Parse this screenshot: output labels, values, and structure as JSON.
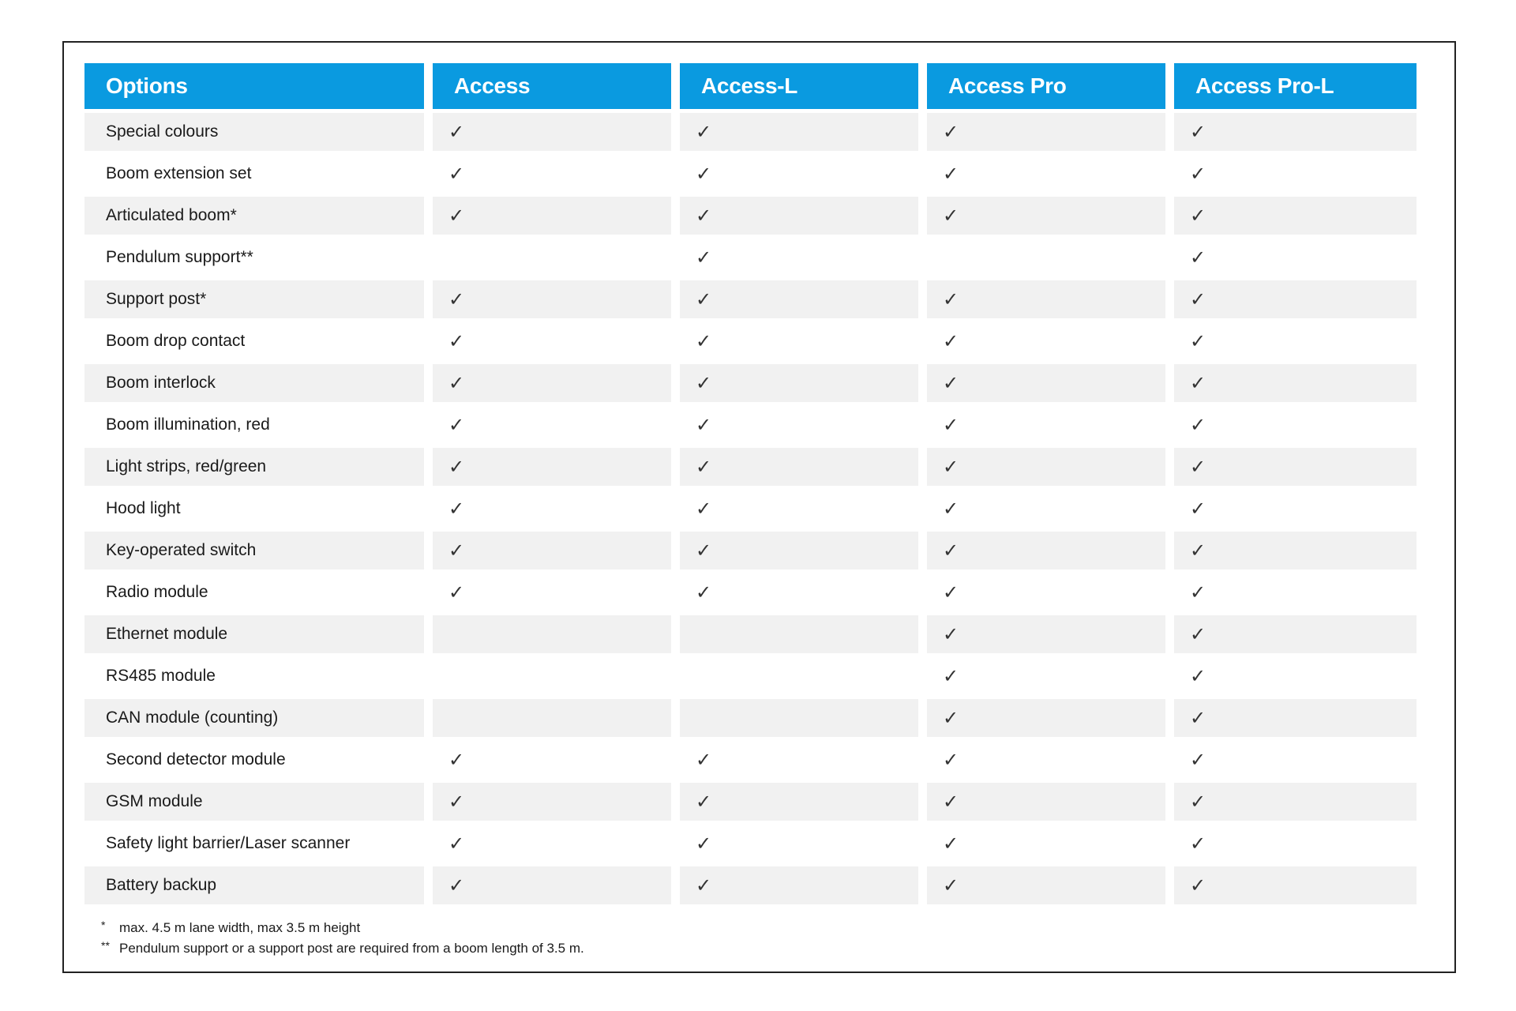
{
  "table": {
    "headers": [
      "Options",
      "Access",
      "Access-L",
      "Access Pro",
      "Access Pro-L"
    ],
    "check_symbol": "✓",
    "header_color": "#0a9ae0",
    "rows": [
      {
        "label": "Special colours",
        "values": [
          true,
          true,
          true,
          true
        ]
      },
      {
        "label": "Boom extension set",
        "values": [
          true,
          true,
          true,
          true
        ]
      },
      {
        "label": "Articulated boom*",
        "values": [
          true,
          true,
          true,
          true
        ]
      },
      {
        "label": "Pendulum support**",
        "values": [
          false,
          true,
          false,
          true
        ]
      },
      {
        "label": "Support post*",
        "values": [
          true,
          true,
          true,
          true
        ]
      },
      {
        "label": "Boom drop contact",
        "values": [
          true,
          true,
          true,
          true
        ]
      },
      {
        "label": "Boom interlock",
        "values": [
          true,
          true,
          true,
          true
        ]
      },
      {
        "label": "Boom illumination, red",
        "values": [
          true,
          true,
          true,
          true
        ]
      },
      {
        "label": "Light strips, red/green",
        "values": [
          true,
          true,
          true,
          true
        ]
      },
      {
        "label": "Hood light",
        "values": [
          true,
          true,
          true,
          true
        ]
      },
      {
        "label": "Key-operated switch",
        "values": [
          true,
          true,
          true,
          true
        ]
      },
      {
        "label": "Radio module",
        "values": [
          true,
          true,
          true,
          true
        ]
      },
      {
        "label": "Ethernet module",
        "values": [
          false,
          false,
          true,
          true
        ]
      },
      {
        "label": "RS485 module",
        "values": [
          false,
          false,
          true,
          true
        ]
      },
      {
        "label": "CAN module (counting)",
        "values": [
          false,
          false,
          true,
          true
        ]
      },
      {
        "label": "Second detector module",
        "values": [
          true,
          true,
          true,
          true
        ]
      },
      {
        "label": "GSM module",
        "values": [
          true,
          true,
          true,
          true
        ]
      },
      {
        "label": "Safety light barrier/Laser scanner",
        "values": [
          true,
          true,
          true,
          true
        ]
      },
      {
        "label": "Battery backup",
        "values": [
          true,
          true,
          true,
          true
        ]
      }
    ]
  },
  "footnotes": [
    {
      "mark": "*",
      "text": "max. 4.5 m lane width, max 3.5 m height"
    },
    {
      "mark": "**",
      "text": "Pendulum support or a support post are required from a boom length of 3.5 m."
    }
  ]
}
